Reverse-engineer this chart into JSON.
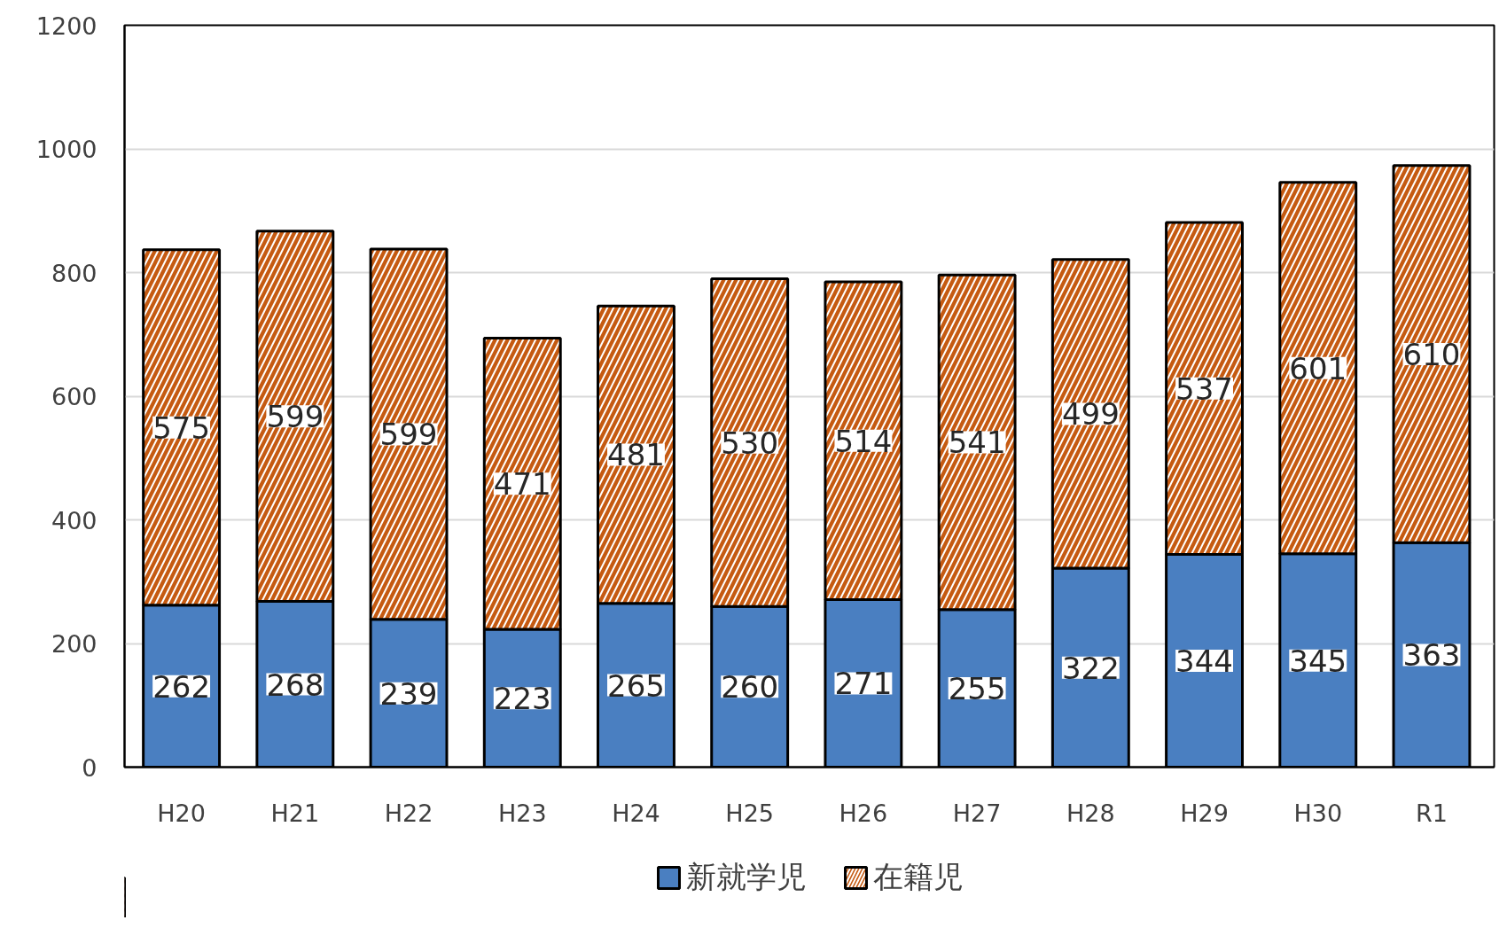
{
  "chart_data": {
    "type": "bar",
    "stacked": true,
    "categories": [
      "H20",
      "H21",
      "H22",
      "H23",
      "H24",
      "H25",
      "H26",
      "H27",
      "H28",
      "H29",
      "H30",
      "R1"
    ],
    "series": [
      {
        "name": "新就学児",
        "color": "#4a7fc1",
        "values": [
          262,
          268,
          239,
          223,
          265,
          260,
          271,
          255,
          322,
          344,
          345,
          363
        ]
      },
      {
        "name": "在籍児",
        "color": "#c55a11",
        "values": [
          575,
          599,
          599,
          471,
          481,
          530,
          514,
          541,
          499,
          537,
          601,
          610
        ]
      }
    ],
    "ylim": [
      0,
      1200
    ],
    "yticks": [
      0,
      200,
      400,
      600,
      800,
      1000,
      1200
    ],
    "grid": "y",
    "legend": "bottom",
    "data_labels": true
  }
}
